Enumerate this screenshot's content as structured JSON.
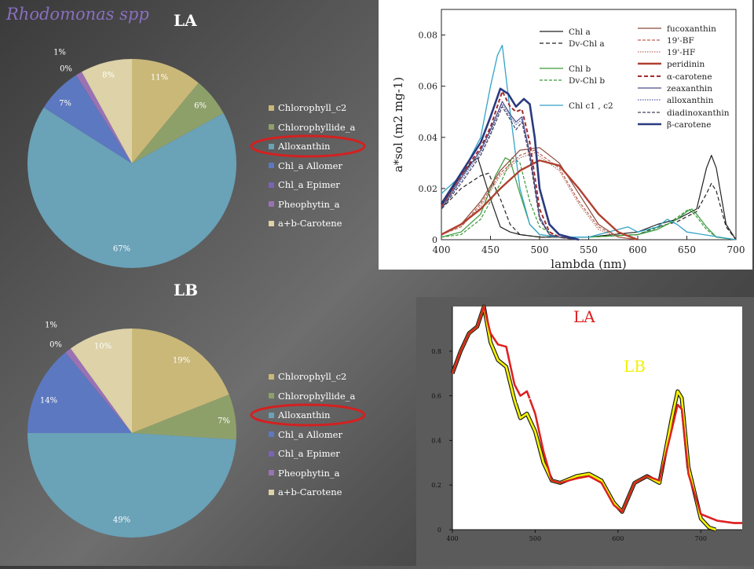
{
  "page": {
    "title": "Rhodomonas spp"
  },
  "pie_legend_labels": [
    "Chlorophyll_c2",
    "Chlorophyllide_a",
    "Alloxanthin",
    "Chl_a Allomer",
    "Chl_a Epimer",
    "Pheophytin_a",
    "a+b-Carotene"
  ],
  "pie_colors": [
    "#c9b878",
    "#8ea06a",
    "#6aa2b8",
    "#5c78c0",
    "#7a62b6",
    "#9a72b4",
    "#ddd2a8"
  ],
  "spectra_colors": {
    "chl_a": "#222222",
    "chl_b": "#3a9a3a",
    "chl_c": "#33a3c8",
    "fucoxanthin": "#8a4a3a",
    "bf19": "#c06050",
    "hf19": "#b07060",
    "peridinin": "#b04030",
    "alpha_carotene": "#a02c2c",
    "zeaxanthin": "#4a4a8a",
    "alloxanthin": "#5060a0",
    "diadinoxanthin": "#404060",
    "beta_carotene": "#2a3a80"
  },
  "absorb_colors": {
    "LA": "#dd2222",
    "LB": "#f2f200"
  },
  "chart_data": [
    {
      "type": "pie",
      "title": "LA",
      "categories": [
        "Chlorophyll_c2",
        "Chlorophyllide_a",
        "Alloxanthin",
        "Chl_a Allomer",
        "Chl_a Epimer",
        "Pheophytin_a",
        "a+b-Carotene"
      ],
      "values": [
        11,
        6,
        67,
        7,
        0,
        1,
        8
      ],
      "labels": [
        "11%",
        "6%",
        "67%",
        "7%",
        "0%",
        "1%",
        "8%"
      ],
      "legend": "right",
      "highlight": "Alloxanthin"
    },
    {
      "type": "pie",
      "title": "LB",
      "categories": [
        "Chlorophyll_c2",
        "Chlorophyllide_a",
        "Alloxanthin",
        "Chl_a Allomer",
        "Chl_a Epimer",
        "Pheophytin_a",
        "a+b-Carotene"
      ],
      "values": [
        19,
        7,
        49,
        14,
        0,
        1,
        10
      ],
      "labels": [
        "19%",
        "7%",
        "49%",
        "14%",
        "0%",
        "1%",
        "10%"
      ],
      "legend": "right",
      "highlight": "Alloxanthin"
    },
    {
      "type": "line",
      "xlabel": "lambda (nm)",
      "ylabel": "a*sol (m2 mg-1)",
      "xlim": [
        400,
        700
      ],
      "ylim": [
        0,
        0.09
      ],
      "xticks": [
        "400",
        "450",
        "500",
        "550",
        "600",
        "650",
        "700"
      ],
      "yticks": [
        "0",
        "0.02",
        "0.04",
        "0.06",
        "0.08"
      ],
      "legend": "top-right",
      "series": [
        {
          "name": "Chl a",
          "key": "chl_a",
          "dash": "",
          "width": 1.2,
          "x": [
            400,
            420,
            430,
            437,
            450,
            460,
            470,
            480,
            500,
            550,
            600,
            620,
            640,
            660,
            670,
            675,
            680,
            690,
            700
          ],
          "y": [
            0.013,
            0.025,
            0.03,
            0.032,
            0.016,
            0.005,
            0.003,
            0.002,
            0.001,
            0.001,
            0.003,
            0.006,
            0.008,
            0.012,
            0.028,
            0.033,
            0.028,
            0.006,
            0
          ]
        },
        {
          "name": "Dv-Chl a",
          "key": "chl_a",
          "dash": "5 3",
          "width": 1.2,
          "x": [
            400,
            420,
            440,
            448,
            460,
            470,
            480,
            500,
            550,
            600,
            620,
            640,
            660,
            670,
            675,
            680,
            690,
            700
          ],
          "y": [
            0.012,
            0.02,
            0.025,
            0.026,
            0.016,
            0.006,
            0.002,
            0.001,
            0.001,
            0.002,
            0.005,
            0.007,
            0.011,
            0.018,
            0.022,
            0.019,
            0.005,
            0
          ]
        },
        {
          "name": "Chl b",
          "key": "chl_b",
          "dash": "",
          "width": 1.2,
          "x": [
            400,
            420,
            440,
            455,
            465,
            470,
            480,
            490,
            500,
            520,
            550,
            600,
            620,
            640,
            650,
            655,
            660,
            670,
            680,
            700
          ],
          "y": [
            0.001,
            0.003,
            0.01,
            0.025,
            0.032,
            0.031,
            0.018,
            0.006,
            0.002,
            0.001,
            0.001,
            0.002,
            0.004,
            0.008,
            0.011,
            0.012,
            0.01,
            0.005,
            0.001,
            0
          ]
        },
        {
          "name": "Dv-Chl b",
          "key": "chl_b",
          "dash": "4 2",
          "width": 1.2,
          "x": [
            400,
            420,
            440,
            460,
            472,
            480,
            490,
            500,
            520,
            550,
            600,
            630,
            645,
            652,
            660,
            670,
            680,
            700
          ],
          "y": [
            0.001,
            0.002,
            0.008,
            0.022,
            0.032,
            0.03,
            0.015,
            0.005,
            0.001,
            0.001,
            0.002,
            0.006,
            0.01,
            0.012,
            0.009,
            0.004,
            0.001,
            0
          ]
        },
        {
          "name": "Chl c1 , c2",
          "key": "chl_c",
          "dash": "",
          "width": 1.3,
          "x": [
            400,
            420,
            440,
            450,
            457,
            462,
            470,
            480,
            490,
            500,
            520,
            550,
            580,
            590,
            600,
            620,
            630,
            640,
            650,
            700
          ],
          "y": [
            0.018,
            0.025,
            0.04,
            0.06,
            0.072,
            0.076,
            0.05,
            0.02,
            0.006,
            0.002,
            0.001,
            0.001,
            0.004,
            0.005,
            0.003,
            0.005,
            0.008,
            0.006,
            0.003,
            0
          ]
        },
        {
          "name": "fucoxanthin",
          "key": "fucoxanthin",
          "dash": "",
          "width": 1.2,
          "x": [
            400,
            420,
            440,
            460,
            480,
            500,
            520,
            540,
            560,
            580,
            600
          ],
          "y": [
            0.002,
            0.006,
            0.015,
            0.027,
            0.035,
            0.036,
            0.03,
            0.018,
            0.006,
            0.001,
            0
          ]
        },
        {
          "name": "19'-BF",
          "key": "bf19",
          "dash": "4 2",
          "width": 1.2,
          "x": [
            400,
            420,
            440,
            460,
            480,
            495,
            520,
            540,
            560,
            580,
            600
          ],
          "y": [
            0.002,
            0.005,
            0.014,
            0.026,
            0.033,
            0.035,
            0.028,
            0.015,
            0.005,
            0.001,
            0
          ]
        },
        {
          "name": "19'-HF",
          "key": "hf19",
          "dash": "1.5 1.5",
          "width": 1.2,
          "x": [
            400,
            420,
            440,
            460,
            480,
            495,
            520,
            540,
            560,
            580,
            600
          ],
          "y": [
            0.002,
            0.005,
            0.013,
            0.025,
            0.032,
            0.034,
            0.027,
            0.014,
            0.004,
            0.001,
            0
          ]
        },
        {
          "name": "peridinin",
          "key": "peridinin",
          "dash": "",
          "width": 2.4,
          "x": [
            400,
            420,
            440,
            460,
            480,
            500,
            520,
            540,
            560,
            580,
            600
          ],
          "y": [
            0.002,
            0.006,
            0.012,
            0.02,
            0.027,
            0.031,
            0.029,
            0.02,
            0.01,
            0.003,
            0
          ]
        },
        {
          "name": "α-carotene",
          "key": "alpha_carotene",
          "dash": "5 3",
          "width": 2.0,
          "x": [
            400,
            420,
            440,
            450,
            462,
            470,
            476,
            482,
            490,
            500,
            510,
            520,
            540
          ],
          "y": [
            0.013,
            0.025,
            0.036,
            0.044,
            0.058,
            0.052,
            0.05,
            0.051,
            0.038,
            0.012,
            0.003,
            0.001,
            0
          ]
        },
        {
          "name": "zeaxanthin",
          "key": "zeaxanthin",
          "dash": "",
          "width": 1.2,
          "x": [
            400,
            420,
            440,
            450,
            462,
            470,
            476,
            482,
            490,
            500,
            510,
            520,
            540
          ],
          "y": [
            0.012,
            0.024,
            0.035,
            0.043,
            0.054,
            0.049,
            0.046,
            0.048,
            0.034,
            0.009,
            0.002,
            0.001,
            0
          ]
        },
        {
          "name": "alloxanthin",
          "key": "alloxanthin",
          "dash": "1.5 1.5",
          "width": 1.2,
          "x": [
            400,
            420,
            440,
            450,
            462,
            470,
            476,
            482,
            490,
            500,
            510,
            520,
            540
          ],
          "y": [
            0.012,
            0.023,
            0.034,
            0.042,
            0.053,
            0.048,
            0.045,
            0.047,
            0.033,
            0.008,
            0.002,
            0.001,
            0
          ]
        },
        {
          "name": "diadinoxanthin",
          "key": "diadinoxanthin",
          "dash": "4 2",
          "width": 1.2,
          "x": [
            400,
            420,
            440,
            450,
            462,
            470,
            476,
            482,
            490,
            500,
            510,
            520,
            540
          ],
          "y": [
            0.012,
            0.022,
            0.033,
            0.041,
            0.052,
            0.047,
            0.043,
            0.046,
            0.032,
            0.008,
            0.002,
            0.001,
            0
          ]
        },
        {
          "name": "β-carotene",
          "key": "beta_carotene",
          "dash": "",
          "width": 2.6,
          "x": [
            400,
            420,
            440,
            450,
            460,
            468,
            476,
            484,
            490,
            495,
            500,
            510,
            520,
            540
          ],
          "y": [
            0.014,
            0.026,
            0.038,
            0.048,
            0.059,
            0.057,
            0.052,
            0.055,
            0.053,
            0.04,
            0.02,
            0.006,
            0.002,
            0
          ]
        }
      ]
    },
    {
      "type": "line",
      "xlim": [
        400,
        750
      ],
      "ylim": [
        0,
        1
      ],
      "xticks": [
        "400",
        "500",
        "600",
        "700"
      ],
      "yticks": [
        "0",
        "0.2",
        "0.4",
        "0.6",
        "0.8"
      ],
      "annotations": [
        "LA",
        "LB"
      ],
      "series": [
        {
          "name": "LA",
          "x": [
            400,
            410,
            420,
            430,
            438,
            446,
            455,
            465,
            475,
            482,
            490,
            500,
            510,
            520,
            530,
            550,
            565,
            580,
            595,
            605,
            620,
            635,
            650,
            665,
            672,
            677,
            685,
            700,
            720,
            740,
            750
          ],
          "y": [
            0.7,
            0.8,
            0.88,
            0.91,
            1.0,
            0.88,
            0.83,
            0.82,
            0.65,
            0.6,
            0.62,
            0.52,
            0.35,
            0.22,
            0.21,
            0.23,
            0.24,
            0.21,
            0.11,
            0.08,
            0.21,
            0.24,
            0.22,
            0.45,
            0.56,
            0.54,
            0.25,
            0.07,
            0.04,
            0.03,
            0.03
          ]
        },
        {
          "name": "LB",
          "x": [
            400,
            410,
            420,
            430,
            438,
            446,
            455,
            465,
            475,
            482,
            490,
            500,
            510,
            520,
            530,
            550,
            565,
            580,
            595,
            605,
            620,
            635,
            650,
            665,
            672,
            677,
            685,
            700,
            710,
            718
          ],
          "y": [
            0.7,
            0.8,
            0.88,
            0.91,
            1.0,
            0.84,
            0.76,
            0.73,
            0.58,
            0.5,
            0.52,
            0.44,
            0.3,
            0.22,
            0.21,
            0.24,
            0.25,
            0.22,
            0.12,
            0.08,
            0.21,
            0.24,
            0.21,
            0.5,
            0.62,
            0.59,
            0.28,
            0.05,
            0.01,
            0.0
          ]
        }
      ]
    }
  ]
}
